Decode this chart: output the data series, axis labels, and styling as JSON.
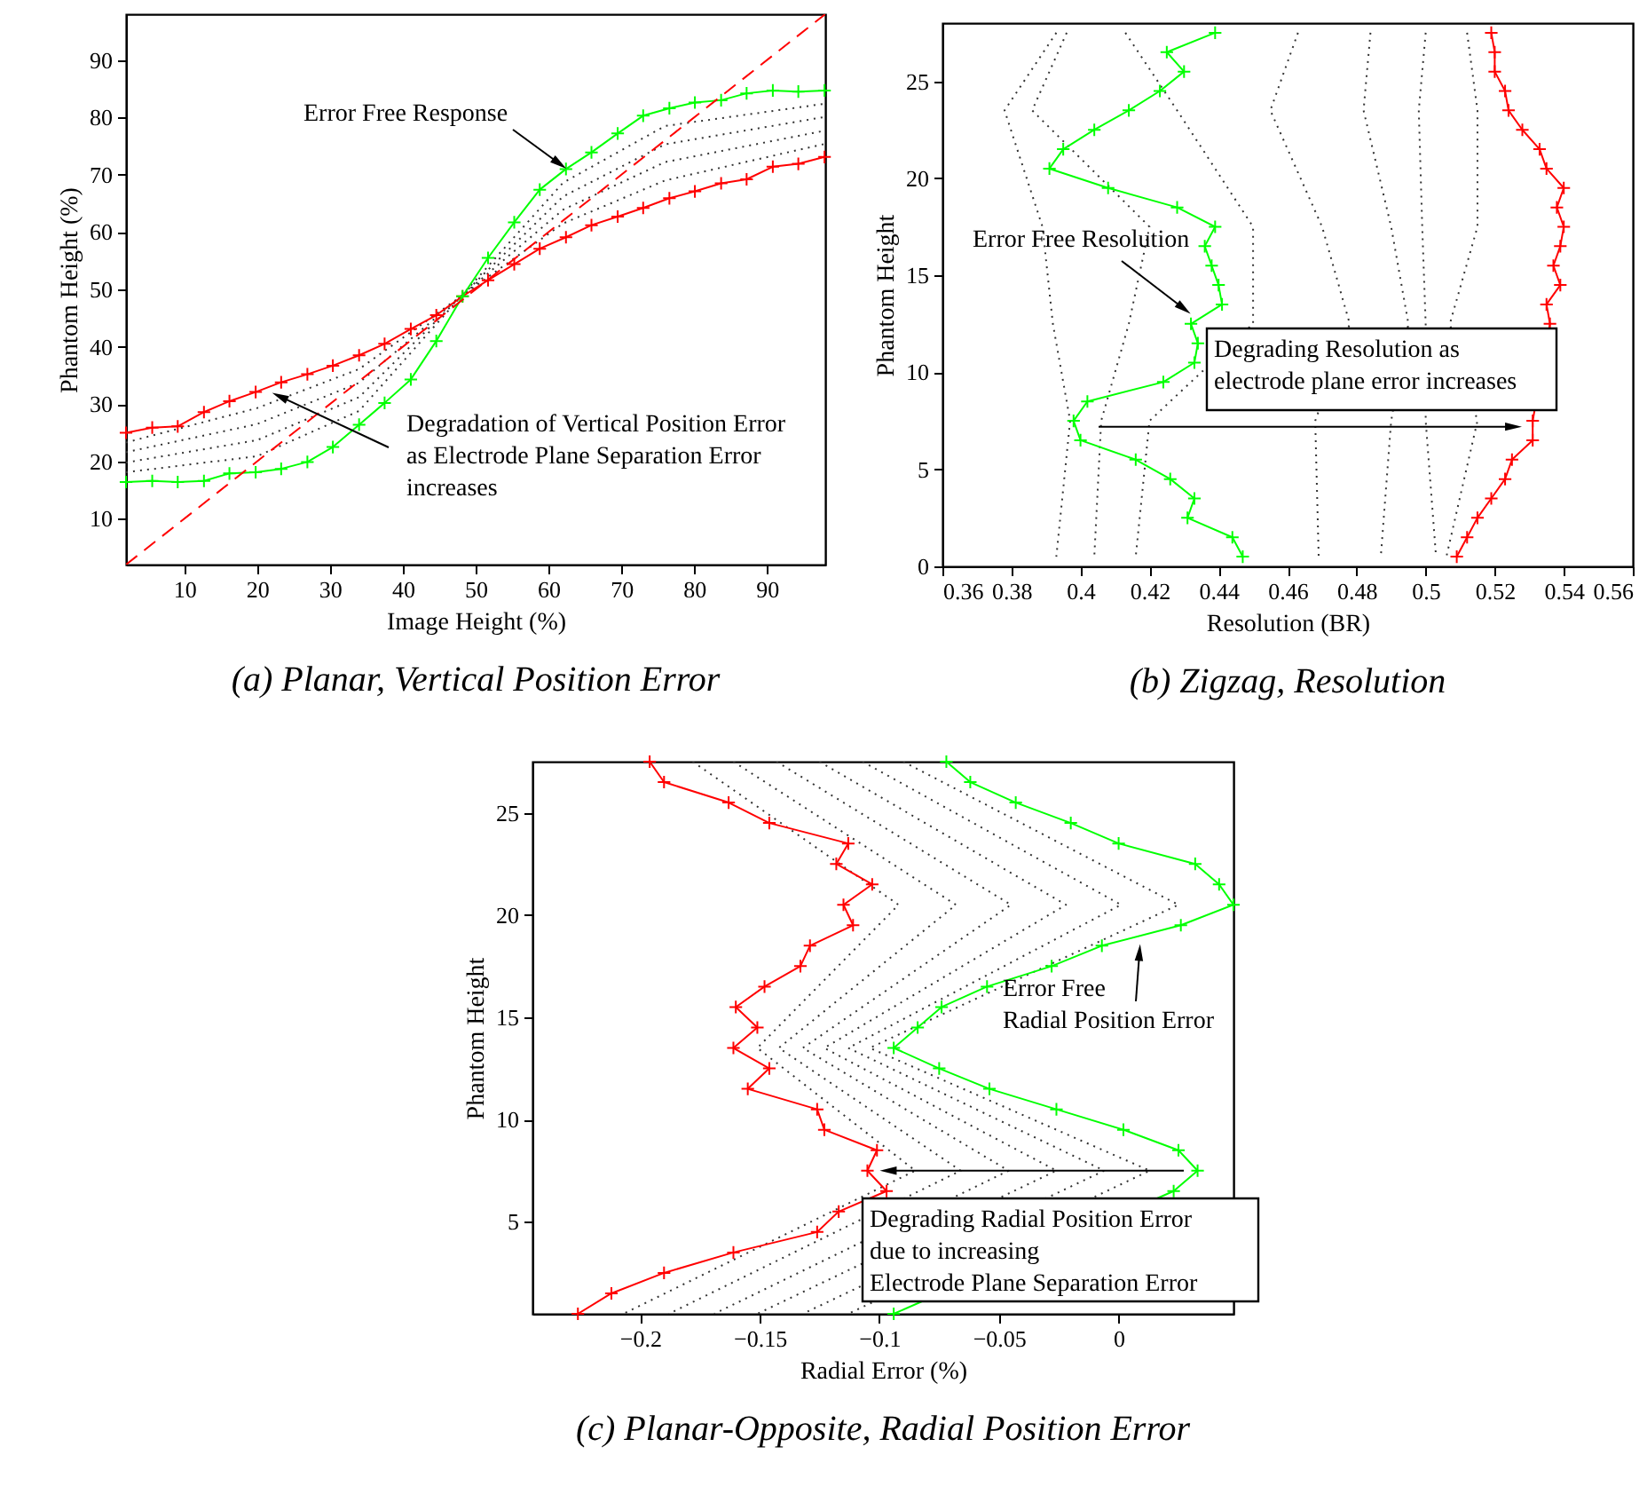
{
  "chart_data": [
    {
      "type": "line",
      "title": "(a) Planar, Vertical Position Error",
      "xlabel": "Image Height (%)",
      "ylabel": "Phantom Height (%)",
      "xlim": [
        2,
        98
      ],
      "ylim": [
        2,
        98
      ],
      "xticks": [
        10,
        20,
        30,
        40,
        50,
        60,
        70,
        80,
        90
      ],
      "yticks": [
        10,
        20,
        30,
        40,
        50,
        60,
        70,
        80,
        90
      ],
      "marker": "cross",
      "line_style": "solid",
      "x": [
        2,
        5.6,
        9.1,
        12.7,
        16.2,
        19.8,
        23.3,
        26.9,
        30.4,
        34,
        37.5,
        41.1,
        44.6,
        48.2,
        51.7,
        55.3,
        58.8,
        62.4,
        65.9,
        69.5,
        73,
        76.6,
        80.1,
        83.7,
        87.2,
        90.8,
        94.3,
        97.9
      ],
      "series": [
        {
          "color": "#333333",
          "line_style": "dotted",
          "marker": "none",
          "x": [
            2,
            20,
            34,
            48,
            62,
            76,
            98
          ],
          "values": [
            23.3,
            29.3,
            36.1,
            48.8,
            61.5,
            69,
            75.4
          ]
        },
        {
          "color": "#333333",
          "line_style": "dotted",
          "marker": "none",
          "x": [
            2,
            20,
            34,
            48,
            62,
            76,
            98
          ],
          "values": [
            21.6,
            26.5,
            33.7,
            48.8,
            63.9,
            72.2,
            77.7
          ]
        },
        {
          "color": "#333333",
          "line_style": "dotted",
          "marker": "none",
          "x": [
            2,
            20,
            34,
            48,
            62,
            76,
            98
          ],
          "values": [
            19.8,
            23.7,
            31.2,
            48.8,
            66.2,
            75.3,
            80.1
          ]
        },
        {
          "color": "#333333",
          "line_style": "dotted",
          "marker": "none",
          "x": [
            2,
            20,
            34,
            48,
            62,
            76,
            98
          ],
          "values": [
            18.1,
            20.9,
            28.8,
            48.8,
            68.6,
            78.5,
            82.4
          ]
        },
        {
          "color": "#ff0000",
          "values": [
            25,
            25.9,
            26.1,
            28.6,
            30.5,
            32.1,
            33.8,
            35.2,
            36.7,
            38.5,
            40.5,
            43.1,
            45.5,
            48.8,
            51.6,
            54.4,
            57.1,
            59.1,
            61.2,
            62.7,
            64.2,
            65.9,
            67.1,
            68.5,
            69.2,
            71.4,
            71.9,
            73.1
          ]
        },
        {
          "color": "#00ff00",
          "values": [
            16.4,
            16.6,
            16.4,
            16.6,
            17.9,
            18.1,
            18.7,
            19.9,
            22.5,
            26.4,
            30.2,
            34.3,
            41,
            48.8,
            55.5,
            61.7,
            67.4,
            71,
            73.9,
            77.2,
            80.3,
            81.6,
            82.6,
            83,
            84.2,
            84.7,
            84.5,
            84.7
          ]
        },
        {
          "color": "#ff0000",
          "line_style": "dashed",
          "marker": "none",
          "x": [
            2,
            98
          ],
          "values": [
            2,
            98
          ]
        }
      ],
      "annotations": [
        {
          "text": "Error Free Response",
          "x": 62.5,
          "y": 71
        },
        {
          "text": "Degradation of Vertical Position Error\nas Electrode Plane Separation Error\nincreases",
          "x": 22,
          "y": 32
        }
      ]
    },
    {
      "type": "line",
      "title": "(b) Zigzag, Resolution",
      "xlabel": "Resolution (BR)",
      "ylabel": "Phantom Height",
      "xlim": [
        0.36,
        0.56
      ],
      "ylim": [
        0,
        28
      ],
      "xticks": [
        0.36,
        0.38,
        0.4,
        0.42,
        0.44,
        0.46,
        0.48,
        0.5,
        0.52,
        0.54,
        0.56
      ],
      "yticks": [
        0,
        5,
        10,
        15,
        20,
        25
      ],
      "marker": "cross",
      "line_style": "solid",
      "series": [
        {
          "color": "#333333",
          "line_style": "dotted",
          "marker": "none",
          "x": [
            0.393,
            0.378,
            0.389,
            0.392,
            0.397,
            0.393
          ],
          "values": [
            27.5,
            23.5,
            17.5,
            12.5,
            7.5,
            0.5
          ]
        },
        {
          "color": "#333333",
          "line_style": "dotted",
          "marker": "none",
          "x": [
            0.396,
            0.386,
            0.42,
            0.414,
            0.406,
            0.404
          ],
          "values": [
            27.5,
            23.5,
            17.5,
            12.5,
            7.5,
            0.5
          ]
        },
        {
          "color": "#333333",
          "line_style": "dotted",
          "marker": "none",
          "x": [
            0.413,
            0.428,
            0.45,
            0.45,
            0.42,
            0.416
          ],
          "values": [
            27.5,
            23.5,
            17.5,
            12.5,
            7.5,
            0.5
          ]
        },
        {
          "color": "#333333",
          "line_style": "dotted",
          "marker": "none",
          "x": [
            0.463,
            0.455,
            0.47,
            0.478,
            0.468,
            0.469
          ],
          "values": [
            27.5,
            23.5,
            17.5,
            12.5,
            7.5,
            0.5
          ]
        },
        {
          "color": "#333333",
          "line_style": "dotted",
          "marker": "none",
          "x": [
            0.484,
            0.482,
            0.49,
            0.495,
            0.49,
            0.487
          ],
          "values": [
            27.5,
            23.5,
            17.5,
            12.5,
            7.5,
            0.5
          ]
        },
        {
          "color": "#333333",
          "line_style": "dotted",
          "marker": "none",
          "x": [
            0.5,
            0.498,
            0.499,
            0.5,
            0.5,
            0.503
          ],
          "values": [
            27.5,
            23.5,
            17.5,
            12.5,
            7.5,
            0.5
          ]
        },
        {
          "color": "#333333",
          "line_style": "dotted",
          "marker": "none",
          "x": [
            0.512,
            0.515,
            0.515,
            0.507,
            0.515,
            0.506
          ],
          "values": [
            27.5,
            23.5,
            17.5,
            12.5,
            7.5,
            0.5
          ]
        },
        {
          "color": "#00ff00",
          "x": [
            0.439,
            0.425,
            0.43,
            0.423,
            0.414,
            0.404,
            0.395,
            0.391,
            0.408,
            0.428,
            0.439,
            0.436,
            0.438,
            0.44,
            0.441,
            0.432,
            0.434,
            0.433,
            0.424,
            0.402,
            0.398,
            0.4,
            0.416,
            0.426,
            0.433,
            0.431,
            0.444,
            0.447
          ],
          "values": [
            27.5,
            26.5,
            25.5,
            24.5,
            23.5,
            22.5,
            21.5,
            20.5,
            19.5,
            18.5,
            17.5,
            16.5,
            15.5,
            14.5,
            13.5,
            12.5,
            11.5,
            10.5,
            9.5,
            8.5,
            7.5,
            6.5,
            5.5,
            4.5,
            3.5,
            2.5,
            1.5,
            0.5
          ]
        },
        {
          "color": "#ff0000",
          "x": [
            0.519,
            0.52,
            0.52,
            0.523,
            0.524,
            0.528,
            0.533,
            0.535,
            0.54,
            0.538,
            0.54,
            0.539,
            0.537,
            0.539,
            0.535,
            0.536,
            0.531,
            0.531,
            0.525,
            0.523,
            0.519,
            0.515,
            0.512,
            0.509
          ],
          "values": [
            27.5,
            26.5,
            25.5,
            24.5,
            23.5,
            22.5,
            21.5,
            20.5,
            19.5,
            18.5,
            17.5,
            16.5,
            15.5,
            14.5,
            13.5,
            12.5,
            7.5,
            6.5,
            5.5,
            4.5,
            3.5,
            2.5,
            1.5,
            0.5
          ]
        }
      ],
      "annotations": [
        {
          "text": "Error Free Resolution",
          "x": 0.432,
          "y": 13
        },
        {
          "text": "Degrading Resolution as\nelectrode plane error increases",
          "x": 0.528,
          "y": 7.2
        }
      ]
    },
    {
      "type": "line",
      "title": "(c) Planar-Opposite, Radial Position Error",
      "xlabel": "Radial Error (%)",
      "ylabel": "Phantom Height",
      "xlim": [
        -0.245,
        0.048
      ],
      "ylim": [
        0.5,
        27.5
      ],
      "xticks": [
        -0.2,
        -0.15,
        -0.1,
        -0.05,
        0
      ],
      "yticks": [
        5,
        10,
        15,
        20,
        25
      ],
      "marker": "cross",
      "line_style": "solid",
      "series": [
        {
          "color": "#333333",
          "line_style": "dotted",
          "marker": "none",
          "x": [
            -0.178,
            -0.092,
            -0.151,
            -0.085,
            -0.207
          ],
          "values": [
            27.5,
            20.5,
            13.5,
            7.5,
            0.5
          ]
        },
        {
          "color": "#333333",
          "line_style": "dotted",
          "marker": "none",
          "x": [
            -0.161,
            -0.068,
            -0.142,
            -0.066,
            -0.188
          ],
          "values": [
            27.5,
            20.5,
            13.5,
            7.5,
            0.5
          ]
        },
        {
          "color": "#333333",
          "line_style": "dotted",
          "marker": "none",
          "x": [
            -0.143,
            -0.045,
            -0.132,
            -0.046,
            -0.169
          ],
          "values": [
            27.5,
            20.5,
            13.5,
            7.5,
            0.5
          ]
        },
        {
          "color": "#333333",
          "line_style": "dotted",
          "marker": "none",
          "x": [
            -0.125,
            -0.022,
            -0.123,
            -0.026,
            -0.151
          ],
          "values": [
            27.5,
            20.5,
            13.5,
            7.5,
            0.5
          ]
        },
        {
          "color": "#333333",
          "line_style": "dotted",
          "marker": "none",
          "x": [
            -0.107,
            0.001,
            -0.113,
            -0.006,
            -0.132
          ],
          "values": [
            27.5,
            20.5,
            13.5,
            7.5,
            0.5
          ]
        },
        {
          "color": "#333333",
          "line_style": "dotted",
          "marker": "none",
          "x": [
            -0.09,
            0.025,
            -0.104,
            0.013,
            -0.113
          ],
          "values": [
            27.5,
            20.5,
            13.5,
            7.5,
            0.5
          ]
        },
        {
          "color": "#ff0000",
          "x": [
            -0.196,
            -0.19,
            -0.163,
            -0.146,
            -0.113,
            -0.118,
            -0.103,
            -0.115,
            -0.111,
            -0.129,
            -0.133,
            -0.148,
            -0.16,
            -0.151,
            -0.161,
            -0.146,
            -0.155,
            -0.126,
            -0.123,
            -0.101,
            -0.105,
            -0.097,
            -0.117,
            -0.126,
            -0.161,
            -0.19,
            -0.212,
            -0.226
          ],
          "values": [
            27.5,
            26.5,
            25.5,
            24.5,
            23.5,
            22.5,
            21.5,
            20.5,
            19.5,
            18.5,
            17.5,
            16.5,
            15.5,
            14.5,
            13.5,
            12.5,
            11.5,
            10.5,
            9.5,
            8.5,
            7.5,
            6.5,
            5.5,
            4.5,
            3.5,
            2.5,
            1.5,
            0.5
          ]
        },
        {
          "color": "#00ff00",
          "x": [
            -0.072,
            -0.062,
            -0.043,
            -0.02,
            0,
            0.032,
            0.042,
            0.048,
            0.026,
            -0.007,
            -0.028,
            -0.055,
            -0.074,
            -0.084,
            -0.094,
            -0.075,
            -0.054,
            -0.026,
            0.002,
            0.025,
            0.033,
            0.023,
            -0.094
          ],
          "values": [
            27.5,
            26.5,
            25.5,
            24.5,
            23.5,
            22.5,
            21.5,
            20.5,
            19.5,
            18.5,
            17.5,
            16.5,
            15.5,
            14.5,
            13.5,
            12.5,
            11.5,
            10.5,
            9.5,
            8.5,
            7.5,
            6.5,
            0.5
          ]
        }
      ],
      "annotations": [
        {
          "text": "Error Free\nRadial Position Error",
          "x": 0.009,
          "y": 18.6
        },
        {
          "text": "Degrading Radial Position Error\ndue to increasing\nElectrode Plane Separation Error",
          "x": -0.1,
          "y": 7.5
        }
      ]
    }
  ]
}
